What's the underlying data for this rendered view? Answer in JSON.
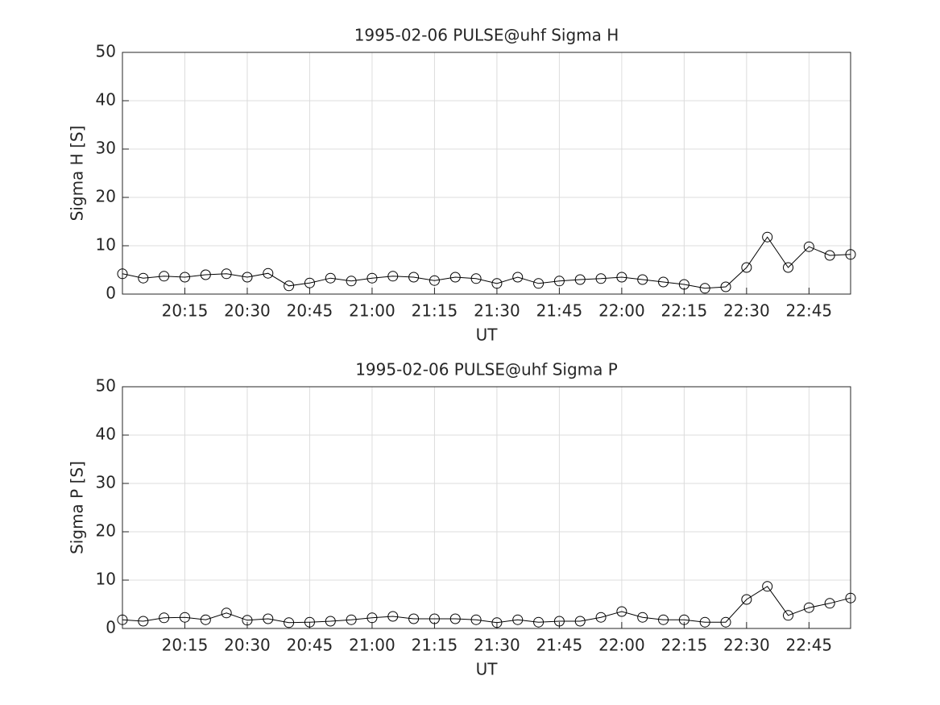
{
  "chart_data": [
    {
      "type": "line",
      "title": "1995-02-06  PULSE@uhf Sigma H",
      "xlabel": "UT",
      "ylabel": "Sigma H [S]",
      "x": [
        "20:00",
        "20:05",
        "20:10",
        "20:15",
        "20:20",
        "20:25",
        "20:30",
        "20:35",
        "20:40",
        "20:45",
        "20:50",
        "20:55",
        "21:00",
        "21:05",
        "21:10",
        "21:15",
        "21:20",
        "21:25",
        "21:30",
        "21:35",
        "21:40",
        "21:45",
        "21:50",
        "21:55",
        "22:00",
        "22:05",
        "22:10",
        "22:15",
        "22:20",
        "22:25",
        "22:30",
        "22:35",
        "22:40",
        "22:45",
        "22:50",
        "22:55"
      ],
      "series": [
        {
          "name": "Sigma H",
          "color": "#000000",
          "values": [
            4.2,
            3.3,
            3.7,
            3.5,
            4.0,
            4.2,
            3.5,
            4.3,
            1.7,
            2.3,
            3.3,
            2.7,
            3.3,
            3.7,
            3.5,
            2.8,
            3.5,
            3.2,
            2.2,
            3.5,
            2.2,
            2.7,
            3.0,
            3.2,
            3.5,
            3.0,
            2.5,
            2.0,
            1.2,
            1.5,
            5.5,
            11.8,
            5.5,
            9.8,
            8.0,
            8.2
          ]
        }
      ],
      "xlim": [
        "20:00",
        "22:55"
      ],
      "xticks": [
        "20:15",
        "20:30",
        "20:45",
        "21:00",
        "21:15",
        "21:30",
        "21:45",
        "22:00",
        "22:15",
        "22:30",
        "22:45"
      ],
      "ylim": [
        0,
        50
      ],
      "yticks": [
        0,
        10,
        20,
        30,
        40,
        50
      ],
      "grid": true
    },
    {
      "type": "line",
      "title": "1995-02-06  PULSE@uhf Sigma P",
      "xlabel": "UT",
      "ylabel": "Sigma P [S]",
      "x": [
        "20:00",
        "20:05",
        "20:10",
        "20:15",
        "20:20",
        "20:25",
        "20:30",
        "20:35",
        "20:40",
        "20:45",
        "20:50",
        "20:55",
        "21:00",
        "21:05",
        "21:10",
        "21:15",
        "21:20",
        "21:25",
        "21:30",
        "21:35",
        "21:40",
        "21:45",
        "21:50",
        "21:55",
        "22:00",
        "22:05",
        "22:10",
        "22:15",
        "22:20",
        "22:25",
        "22:30",
        "22:35",
        "22:40",
        "22:45",
        "22:50",
        "22:55"
      ],
      "series": [
        {
          "name": "Sigma P",
          "color": "#000000",
          "values": [
            1.8,
            1.5,
            2.2,
            2.3,
            1.8,
            3.2,
            1.7,
            2.0,
            1.2,
            1.3,
            1.5,
            1.8,
            2.2,
            2.5,
            2.0,
            2.0,
            2.0,
            1.8,
            1.2,
            1.8,
            1.3,
            1.5,
            1.5,
            2.3,
            3.5,
            2.3,
            1.8,
            1.8,
            1.3,
            1.3,
            6.0,
            8.7,
            2.7,
            4.3,
            5.2,
            6.3
          ]
        }
      ],
      "xlim": [
        "20:00",
        "22:55"
      ],
      "xticks": [
        "20:15",
        "20:30",
        "20:45",
        "21:00",
        "21:15",
        "21:30",
        "21:45",
        "22:00",
        "22:15",
        "22:30",
        "22:45"
      ],
      "ylim": [
        0,
        50
      ],
      "yticks": [
        0,
        10,
        20,
        30,
        40,
        50
      ],
      "grid": true
    }
  ]
}
